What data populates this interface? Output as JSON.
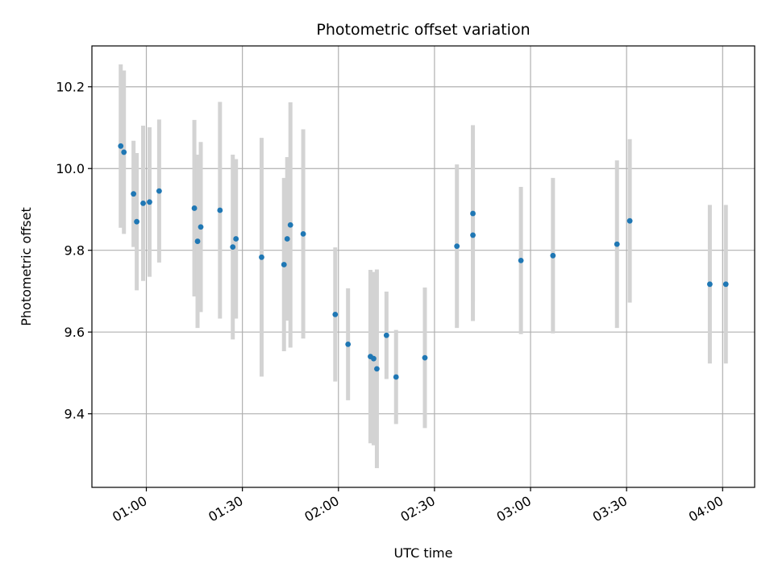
{
  "chart_data": {
    "type": "scatter",
    "title": "Photometric offset variation",
    "xlabel": "UTC time",
    "ylabel": "Photometric offset",
    "x_axis_kind": "time",
    "xlim": [
      "00:43",
      "04:10"
    ],
    "ylim": [
      9.22,
      10.3
    ],
    "grid": true,
    "x_ticks": [
      "01:00",
      "01:30",
      "02:00",
      "02:30",
      "03:00",
      "03:30",
      "04:00"
    ],
    "y_ticks": [
      "9.4",
      "9.6",
      "9.8",
      "10.0",
      "10.2"
    ],
    "point_color": "#1f77b4",
    "errorbar_color": "#d3d3d3",
    "series": [
      {
        "points": [
          {
            "x": "00:52",
            "y": 10.055,
            "err": 0.2
          },
          {
            "x": "00:53",
            "y": 10.04,
            "err": 0.2
          },
          {
            "x": "00:56",
            "y": 9.938,
            "err": 0.13
          },
          {
            "x": "00:57",
            "y": 9.87,
            "err": 0.168
          },
          {
            "x": "00:59",
            "y": 9.915,
            "err": 0.19
          },
          {
            "x": "01:01",
            "y": 9.918,
            "err": 0.183
          },
          {
            "x": "01:04",
            "y": 9.945,
            "err": 0.175
          },
          {
            "x": "01:15",
            "y": 9.903,
            "err": 0.216
          },
          {
            "x": "01:16",
            "y": 9.822,
            "err": 0.212
          },
          {
            "x": "01:17",
            "y": 9.857,
            "err": 0.208
          },
          {
            "x": "01:23",
            "y": 9.898,
            "err": 0.265
          },
          {
            "x": "01:27",
            "y": 9.808,
            "err": 0.226
          },
          {
            "x": "01:28",
            "y": 9.828,
            "err": 0.195
          },
          {
            "x": "01:36",
            "y": 9.783,
            "err": 0.292
          },
          {
            "x": "01:43",
            "y": 9.765,
            "err": 0.212
          },
          {
            "x": "01:44",
            "y": 9.828,
            "err": 0.2
          },
          {
            "x": "01:45",
            "y": 9.862,
            "err": 0.3
          },
          {
            "x": "01:49",
            "y": 9.84,
            "err": 0.256
          },
          {
            "x": "01:59",
            "y": 9.643,
            "err": 0.164
          },
          {
            "x": "02:03",
            "y": 9.57,
            "err": 0.137
          },
          {
            "x": "02:10",
            "y": 9.54,
            "err": 0.212
          },
          {
            "x": "02:11",
            "y": 9.535,
            "err": 0.212
          },
          {
            "x": "02:12",
            "y": 9.51,
            "err": 0.243
          },
          {
            "x": "02:15",
            "y": 9.592,
            "err": 0.107
          },
          {
            "x": "02:18",
            "y": 9.49,
            "err": 0.115
          },
          {
            "x": "02:27",
            "y": 9.537,
            "err": 0.172
          },
          {
            "x": "02:37",
            "y": 9.81,
            "err": 0.2
          },
          {
            "x": "02:42",
            "y": 9.837,
            "err": 0.21
          },
          {
            "x": "02:42",
            "y": 9.89,
            "err": 0.216
          },
          {
            "x": "02:57",
            "y": 9.775,
            "err": 0.18
          },
          {
            "x": "03:07",
            "y": 9.787,
            "err": 0.19
          },
          {
            "x": "03:27",
            "y": 9.815,
            "err": 0.205
          },
          {
            "x": "03:31",
            "y": 9.872,
            "err": 0.2
          },
          {
            "x": "03:56",
            "y": 9.717,
            "err": 0.194
          },
          {
            "x": "04:01",
            "y": 9.717,
            "err": 0.194
          }
        ]
      }
    ]
  }
}
